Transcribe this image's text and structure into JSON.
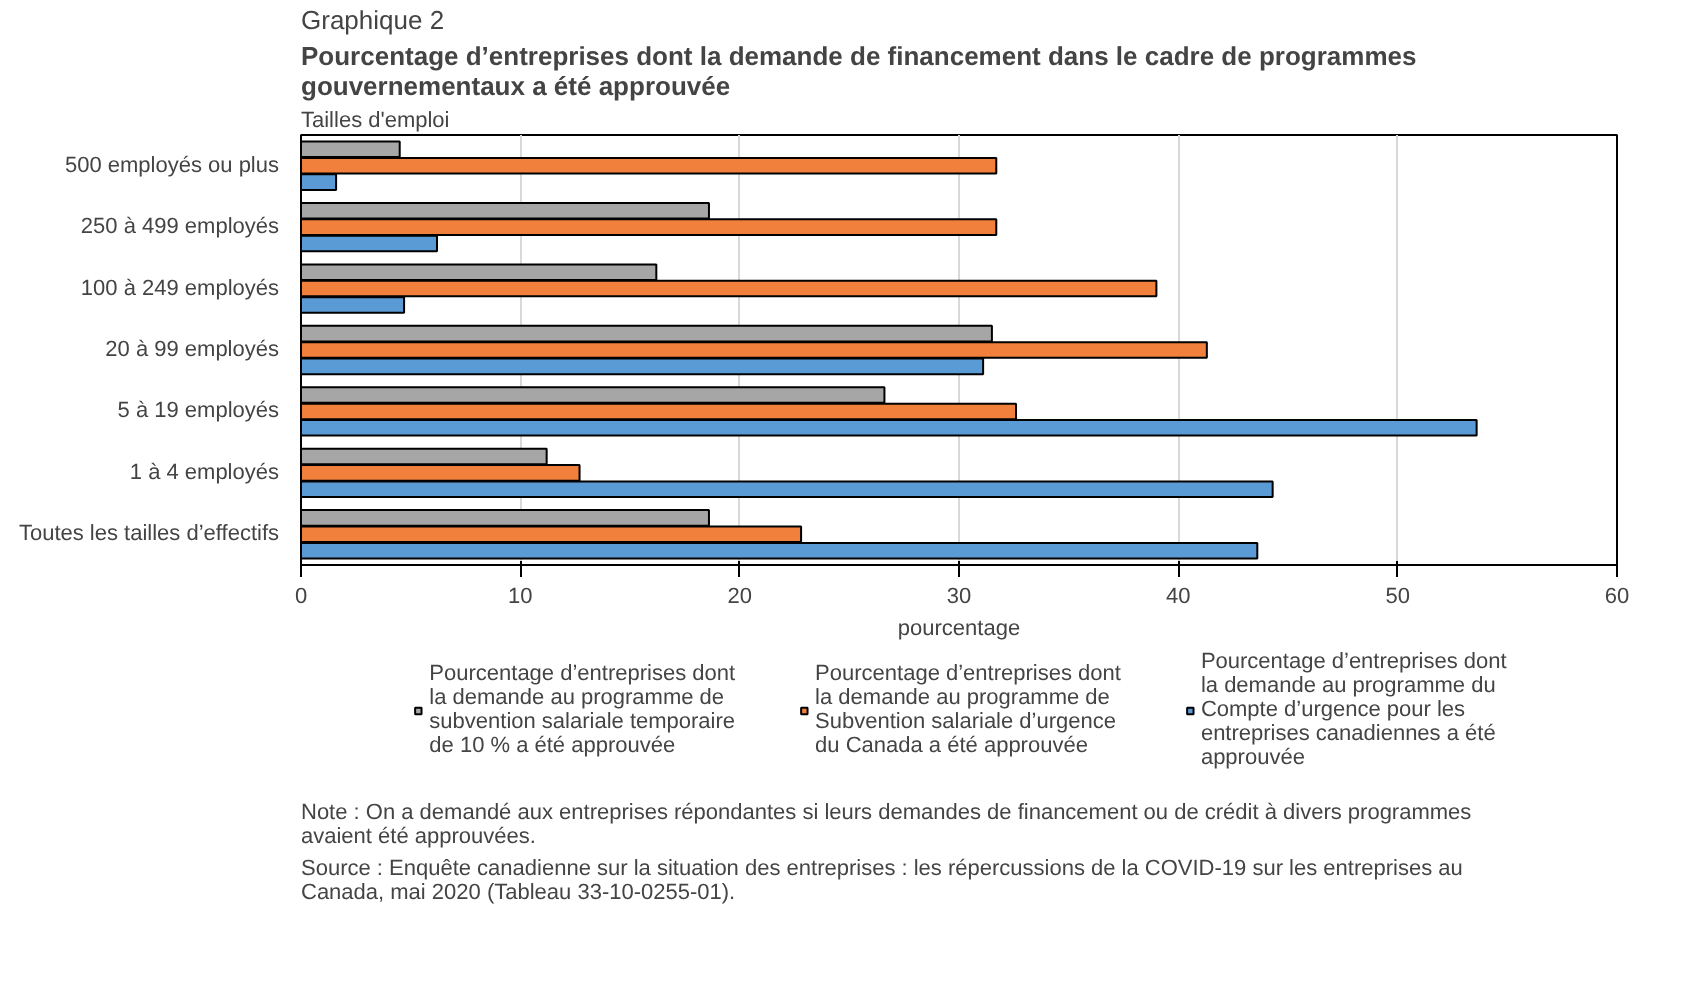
{
  "chart_data": {
    "type": "bar",
    "orientation": "horizontal",
    "title": "Graphique 2",
    "subtitle": "Pourcentage d’entreprises dont la demande de financement dans le cadre de programmes gouvernementaux a été approuvée",
    "ylabel": "Tailles d'emploi",
    "xlabel": "pourcentage",
    "categories": [
      "500 employés ou plus",
      "250 à 499 employés",
      "100 à 249 employés",
      "20 à 99 employés",
      "5 à 19 employés",
      "1 à 4 employés",
      "Toutes les tailles d’effectifs"
    ],
    "series": [
      {
        "name": "Pourcentage d’entreprises dont la demande au programme de subvention salariale temporaire de 10 % a été approuvée",
        "color": "#a6a6a6",
        "values": [
          4.5,
          18.6,
          16.2,
          31.5,
          26.6,
          11.2,
          18.6
        ]
      },
      {
        "name": "Pourcentage d’entreprises dont la demande au programme de Subvention salariale d’urgence du Canada a été approuvée",
        "color": "#f0803c",
        "values": [
          31.7,
          31.7,
          39.0,
          41.3,
          32.6,
          12.7,
          22.8
        ]
      },
      {
        "name": "Pourcentage d’entreprises dont la demande au programme du Compte d’urgence pour les entreprises canadiennes a été approuvée",
        "color": "#5b9bd5",
        "values": [
          1.6,
          6.2,
          4.7,
          31.1,
          53.6,
          44.3,
          43.6
        ]
      }
    ],
    "xlim": [
      0,
      60
    ],
    "xticks": [
      0,
      10,
      20,
      30,
      40,
      50,
      60
    ],
    "grid": "x",
    "legend": "bottom",
    "annotations": [
      "Note : On a demandé aux entreprises répondantes si leurs demandes de financement ou de crédit à divers programmes avaient été approuvées.",
      "Source : Enquête canadienne sur la situation des entreprises : les répercussions de la COVID-19 sur les entreprises au Canada, mai 2020 (Tableau 33-10-0255-01)."
    ]
  }
}
